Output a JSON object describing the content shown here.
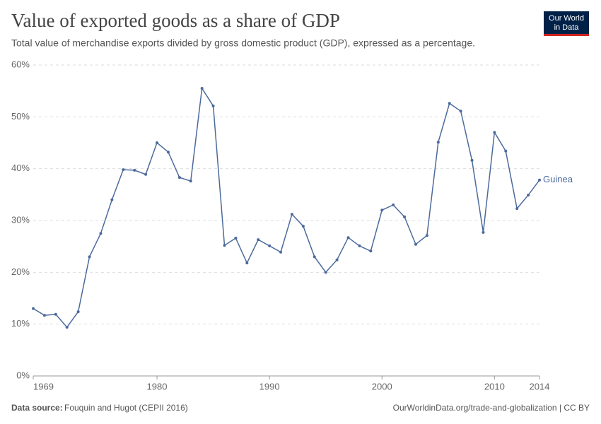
{
  "chart_data": {
    "type": "line",
    "title": "Value of exported goods as a share of GDP",
    "subtitle": "Total value of merchandise exports divided by gross domestic product (GDP), expressed as a percentage.",
    "logo": [
      "Our World",
      "in Data"
    ],
    "source_label": "Data source:",
    "source": "Fouquin and Hugot (CEPII 2016)",
    "url": "OurWorldinData.org/trade-and-globalization | CC BY",
    "x": [
      1969,
      1970,
      1971,
      1972,
      1973,
      1974,
      1975,
      1976,
      1977,
      1978,
      1979,
      1980,
      1981,
      1982,
      1983,
      1984,
      1985,
      1986,
      1987,
      1988,
      1989,
      1990,
      1991,
      1992,
      1993,
      1994,
      1995,
      1996,
      1997,
      1998,
      1999,
      2000,
      2001,
      2002,
      2003,
      2004,
      2005,
      2006,
      2007,
      2008,
      2009,
      2010,
      2011,
      2012,
      2013,
      2014
    ],
    "series": [
      {
        "name": "Guinea",
        "color": "#4c6a9c",
        "values": [
          13.0,
          11.7,
          11.9,
          9.4,
          12.4,
          23.0,
          27.5,
          34.0,
          39.8,
          39.7,
          38.9,
          45.0,
          43.2,
          38.3,
          37.6,
          55.5,
          52.1,
          25.2,
          26.6,
          21.8,
          26.3,
          25.1,
          23.9,
          31.2,
          28.9,
          23.0,
          20.0,
          22.4,
          26.7,
          25.1,
          24.1,
          32.0,
          33.0,
          30.7,
          25.4,
          27.1,
          45.1,
          52.6,
          51.1,
          41.6,
          27.7,
          47.0,
          43.4,
          32.3,
          34.9,
          37.8
        ]
      }
    ],
    "xlim": [
      1969,
      2014
    ],
    "xticks": [
      1969,
      1980,
      1990,
      2000,
      2010,
      2014
    ],
    "ylim": [
      0,
      60
    ],
    "yticks": [
      {
        "value": 0,
        "label": "0%"
      },
      {
        "value": 10,
        "label": "10%"
      },
      {
        "value": 20,
        "label": "20%"
      },
      {
        "value": 30,
        "label": "30%"
      },
      {
        "value": 40,
        "label": "40%"
      },
      {
        "value": 50,
        "label": "50%"
      },
      {
        "value": 60,
        "label": "60%"
      }
    ],
    "grid": true
  }
}
